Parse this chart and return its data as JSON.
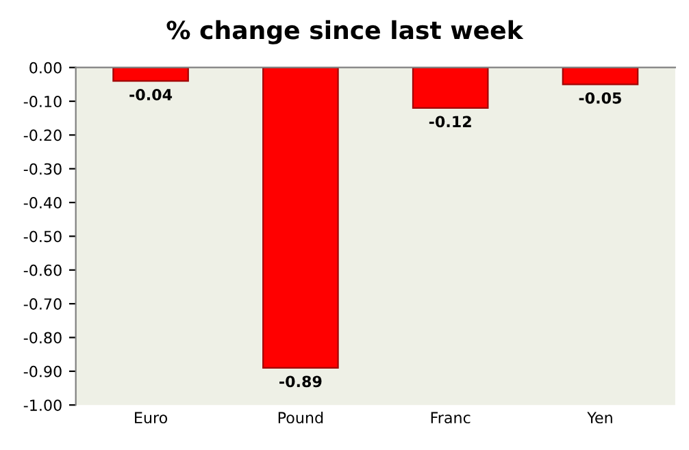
{
  "chart_data": {
    "type": "bar",
    "title": "% change since last week",
    "categories": [
      "Euro",
      "Pound",
      "Franc",
      "Yen"
    ],
    "values": [
      -0.04,
      -0.89,
      -0.12,
      -0.05
    ],
    "color": "#ff0000",
    "ylim": [
      -1.0,
      0.0
    ],
    "yticks": [
      {
        "value": 0.0,
        "label": "0.00"
      },
      {
        "value": -0.1,
        "label": "-0.10"
      },
      {
        "value": -0.2,
        "label": "-0.20"
      },
      {
        "value": -0.3,
        "label": "-0.30"
      },
      {
        "value": -0.4,
        "label": "-0.40"
      },
      {
        "value": -0.5,
        "label": "-0.50"
      },
      {
        "value": -0.6,
        "label": "-0.60"
      },
      {
        "value": -0.7,
        "label": "-0.70"
      },
      {
        "value": -0.8,
        "label": "-0.80"
      },
      {
        "value": -0.9,
        "label": "-0.90"
      },
      {
        "value": -1.0,
        "label": "-1.00"
      }
    ],
    "data_labels": true,
    "grid": false,
    "legend": false
  }
}
